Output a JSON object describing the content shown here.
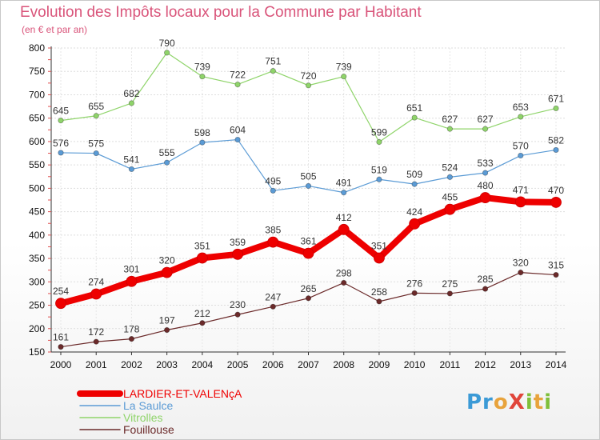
{
  "chart_data": {
    "type": "line",
    "title": "Evolution des Impôts locaux pour la Commune par Habitant",
    "subtitle": "(en € et par an)",
    "x": [
      "2000",
      "2001",
      "2002",
      "2003",
      "2004",
      "2005",
      "2006",
      "2007",
      "2008",
      "2009",
      "2010",
      "2011",
      "2012",
      "2013",
      "2014"
    ],
    "ylim": [
      150,
      800
    ],
    "yticks": [
      "150",
      "200",
      "250",
      "300",
      "350",
      "400",
      "450",
      "500",
      "550",
      "600",
      "650",
      "700",
      "750",
      "800"
    ],
    "grid": true,
    "legend_position": "bottom-left",
    "series": [
      {
        "name": "Vitrolles",
        "color": "#8fd46a",
        "values": [
          645,
          655,
          682,
          790,
          739,
          722,
          751,
          720,
          739,
          599,
          651,
          627,
          627,
          653,
          671
        ]
      },
      {
        "name": "La Saulce",
        "color": "#5b9bd5",
        "values": [
          576,
          575,
          541,
          555,
          598,
          604,
          495,
          505,
          491,
          519,
          509,
          524,
          533,
          570,
          582
        ]
      },
      {
        "name": "LARDIER-ET-VALENçA",
        "color": "#ee0000",
        "values": [
          254,
          274,
          301,
          320,
          351,
          359,
          385,
          361,
          412,
          351,
          424,
          455,
          480,
          471,
          470
        ]
      },
      {
        "name": "Fouillouse",
        "color": "#6b2a2a",
        "values": [
          161,
          172,
          178,
          197,
          212,
          230,
          247,
          265,
          298,
          258,
          276,
          275,
          285,
          320,
          315
        ]
      }
    ],
    "legend_order": [
      "LARDIER-ET-VALENçA",
      "La Saulce",
      "Vitrolles",
      "Fouillouse"
    ]
  },
  "logo": {
    "text": "ProXiti"
  }
}
